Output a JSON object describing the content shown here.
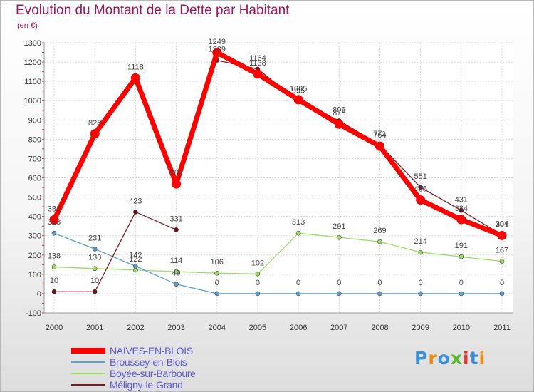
{
  "chart_data": {
    "type": "line",
    "title": "Evolution du Montant de la Dette par Habitant",
    "subtitle": "(en €)",
    "categories": [
      "2000",
      "2001",
      "2002",
      "2003",
      "2004",
      "2005",
      "2006",
      "2007",
      "2008",
      "2009",
      "2010",
      "2011"
    ],
    "ylim": [
      -100,
      1300
    ],
    "yticks": [
      -100,
      0,
      100,
      200,
      300,
      400,
      500,
      600,
      700,
      800,
      900,
      1000,
      1100,
      1200,
      1300
    ],
    "grid": true,
    "legend_position": "bottom-left",
    "series": [
      {
        "name": "NAIVES-EN-BLOIS",
        "color": "#ff0000",
        "values": [
          382,
          828,
          1118,
          568,
          1249,
          1138,
          1005,
          878,
          764,
          485,
          384,
          301
        ]
      },
      {
        "name": "Broussey-en-Blois",
        "color": "#5e9fd2",
        "values": [
          313,
          231,
          142,
          49,
          0,
          0,
          0,
          0,
          0,
          0,
          0,
          0
        ]
      },
      {
        "name": "Boyée-sur-Barboure",
        "color": "#99dd66",
        "values": [
          138,
          130,
          122,
          114,
          106,
          102,
          313,
          291,
          269,
          214,
          191,
          167
        ]
      },
      {
        "name": "Méligny-le-Grand",
        "color": "#7b1c22",
        "values": [
          10,
          10,
          423,
          331,
          null,
          1164,
          995,
          896,
          771,
          551,
          431,
          304
        ],
        "values_extra": {
          "4": 1209
        }
      }
    ],
    "point_labels": [
      {
        "series": 0,
        "labels": [
          "382",
          "828",
          "1118",
          "568",
          "1249",
          "1138",
          "1005",
          "878",
          "764",
          "485",
          "384",
          "301"
        ]
      },
      {
        "series": 1,
        "labels": [
          "313",
          "231",
          "142",
          "49",
          "0",
          "0",
          "0",
          "0",
          "0",
          "0",
          "0",
          "0"
        ]
      },
      {
        "series": 2,
        "labels": [
          "138",
          "130",
          "122",
          "114",
          "106",
          "102",
          "313",
          "291",
          "269",
          "214",
          "191",
          "167"
        ]
      },
      {
        "series": 3,
        "labels": [
          "10",
          "10",
          "423",
          "331",
          "1209",
          "1164",
          "995",
          "896",
          "771",
          "551",
          "431",
          "304"
        ]
      }
    ]
  },
  "logo": {
    "text": "Proxiti",
    "colors": [
      "#3a8fd8",
      "#f08c10",
      "#3a8fd8",
      "#5cb82e",
      "#e53030",
      "#3a8fd8",
      "#f08c10"
    ]
  }
}
